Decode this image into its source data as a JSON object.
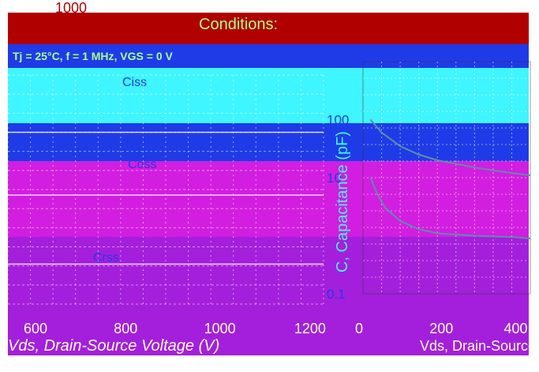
{
  "header": {
    "top_number": "1000",
    "title": "Conditions:",
    "conditions_line": "Tj = 25°C, f = 1 MHz, VGS = 0 V"
  },
  "colors": {
    "band_red": "#b00000",
    "band_blue": "#1f3be8",
    "band_cyan": "#3ff5ff",
    "band_magenta": "#d21ee0",
    "band_purple": "#a41fdc",
    "curve": "#5a8fa8",
    "text_green": "#a8ff88",
    "text_white": "#ffffff"
  },
  "chart_data": [
    {
      "type": "line",
      "title": "",
      "xlabel": "Vds, Drain-Source Voltage (V)",
      "ylabel": "C, Capacitance (pF)",
      "xlim": [
        600,
        1300
      ],
      "x_ticks": [
        "600",
        "800",
        "1000",
        "1200"
      ],
      "series": [
        {
          "name": "Ciss",
          "x": [
            600,
            800,
            1000,
            1200,
            1300
          ],
          "y": [
            1000,
            1000,
            1000,
            1000,
            1000
          ]
        },
        {
          "name": "Coss",
          "x": [
            600,
            800,
            1000,
            1200,
            1300
          ],
          "y": [
            80,
            80,
            80,
            80,
            80
          ]
        },
        {
          "name": "Crss",
          "x": [
            600,
            800,
            1000,
            1200,
            1300
          ],
          "y": [
            5,
            5,
            5,
            5,
            5
          ]
        }
      ],
      "series_labels": [
        "Ciss",
        "Coss",
        "Crss"
      ]
    },
    {
      "type": "line",
      "title": "",
      "xlabel": "Vds, Drain-Source Voltage (V)",
      "ylabel": "C, Capacitance (pF)",
      "ylim": [
        0.1,
        1000
      ],
      "xlim": [
        0,
        450
      ],
      "y_ticks": [
        "100",
        "10",
        "0.1"
      ],
      "x_ticks": [
        "0",
        "200",
        "400"
      ],
      "series": [
        {
          "name": "Coss",
          "x": [
            20,
            50,
            100,
            150,
            200,
            300,
            400,
            450
          ],
          "y": [
            100,
            60,
            35,
            25,
            20,
            15,
            12,
            11
          ]
        },
        {
          "name": "Crss",
          "x": [
            20,
            40,
            60,
            100,
            150,
            200,
            300,
            400,
            450
          ],
          "y": [
            10,
            5,
            3,
            1.8,
            1.3,
            1.1,
            1.0,
            0.95,
            0.9
          ]
        }
      ]
    }
  ]
}
